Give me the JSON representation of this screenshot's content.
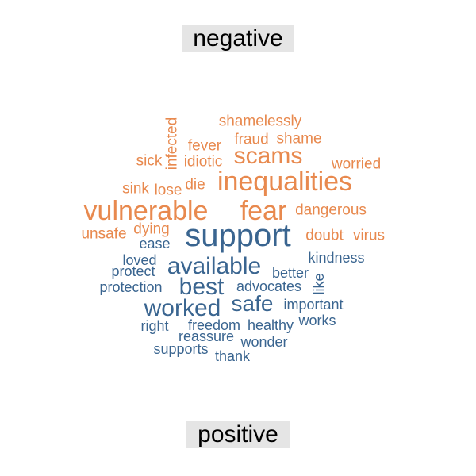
{
  "labels": {
    "top": "negative",
    "bottom": "positive"
  },
  "colors": {
    "negative": "#e8894e",
    "positive": "#3a6590"
  },
  "chart_data": {
    "type": "wordcloud",
    "groups": [
      {
        "name": "negative",
        "words": [
          {
            "text": "shamelessly",
            "weight": 2
          },
          {
            "text": "infected",
            "weight": 2
          },
          {
            "text": "fraud",
            "weight": 2
          },
          {
            "text": "shame",
            "weight": 2
          },
          {
            "text": "fever",
            "weight": 2
          },
          {
            "text": "scams",
            "weight": 5
          },
          {
            "text": "sick",
            "weight": 2
          },
          {
            "text": "idiotic",
            "weight": 2
          },
          {
            "text": "worried",
            "weight": 2
          },
          {
            "text": "inequalities",
            "weight": 6
          },
          {
            "text": "sink",
            "weight": 2
          },
          {
            "text": "lose",
            "weight": 2
          },
          {
            "text": "die",
            "weight": 2
          },
          {
            "text": "vulnerable",
            "weight": 6
          },
          {
            "text": "fear",
            "weight": 6
          },
          {
            "text": "dangerous",
            "weight": 2
          },
          {
            "text": "dying",
            "weight": 2
          },
          {
            "text": "unsafe",
            "weight": 2
          },
          {
            "text": "doubt",
            "weight": 2
          },
          {
            "text": "virus",
            "weight": 2
          }
        ]
      },
      {
        "name": "positive",
        "words": [
          {
            "text": "support",
            "weight": 8
          },
          {
            "text": "ease",
            "weight": 1
          },
          {
            "text": "kindness",
            "weight": 1
          },
          {
            "text": "loved",
            "weight": 1
          },
          {
            "text": "available",
            "weight": 5
          },
          {
            "text": "protect",
            "weight": 1
          },
          {
            "text": "better",
            "weight": 1
          },
          {
            "text": "protection",
            "weight": 1
          },
          {
            "text": "best",
            "weight": 5
          },
          {
            "text": "advocates",
            "weight": 1
          },
          {
            "text": "like",
            "weight": 1
          },
          {
            "text": "worked",
            "weight": 5
          },
          {
            "text": "safe",
            "weight": 4
          },
          {
            "text": "important",
            "weight": 1
          },
          {
            "text": "right",
            "weight": 1
          },
          {
            "text": "freedom",
            "weight": 1
          },
          {
            "text": "healthy",
            "weight": 1
          },
          {
            "text": "works",
            "weight": 1
          },
          {
            "text": "reassure",
            "weight": 1
          },
          {
            "text": "wonder",
            "weight": 1
          },
          {
            "text": "supports",
            "weight": 1
          },
          {
            "text": "thank",
            "weight": 1
          }
        ]
      }
    ]
  }
}
